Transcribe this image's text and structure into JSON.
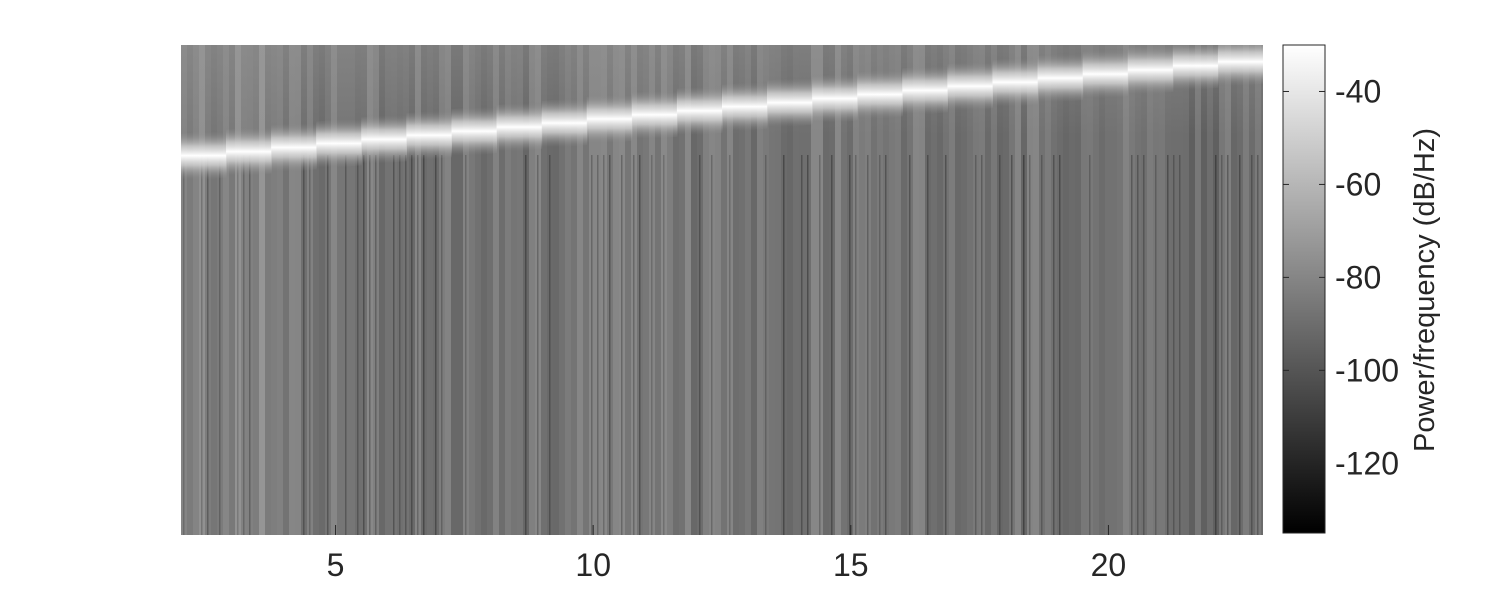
{
  "chart_data": {
    "type": "heatmap",
    "title": "",
    "xlabel": "",
    "ylabel": "",
    "colormap": "gray",
    "xlim": [
      2,
      23
    ],
    "x_ticks": [
      5,
      10,
      15,
      20
    ],
    "x_tick_labels": [
      "5",
      "10",
      "15",
      "20"
    ],
    "y_ticks_shown": false,
    "colorbar": {
      "label": "Power/frequency (dB/Hz)",
      "clim": [
        -135,
        -30
      ],
      "ticks": [
        -40,
        -60,
        -80,
        -100,
        -120
      ],
      "tick_labels": [
        "-40",
        "-60",
        "-80",
        "-100",
        "-120"
      ]
    },
    "features": {
      "chirp_ridge": {
        "description_level_db": -32,
        "start_x": 2,
        "end_x": 23,
        "start_relative_height": 0.77,
        "end_relative_height": 0.97
      },
      "background_level_db": -85
    }
  }
}
